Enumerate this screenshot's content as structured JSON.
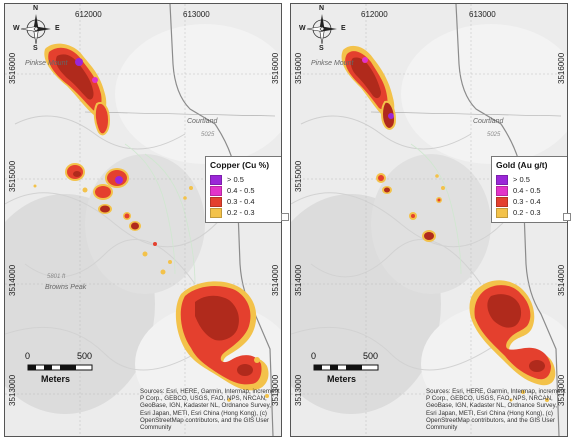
{
  "maps": [
    {
      "id": "left",
      "legend_title": "Copper (Cu %)",
      "legend_items": [
        {
          "label": "> 0.5",
          "color": "#9b27d8"
        },
        {
          "label": "0.4 - 0.5",
          "color": "#e333c9"
        },
        {
          "label": "0.3 - 0.4",
          "color": "#e4402e"
        },
        {
          "label": "0.2 - 0.3",
          "color": "#f3c24a"
        }
      ]
    },
    {
      "id": "right",
      "legend_title": "Gold (Au g/t)",
      "legend_items": [
        {
          "label": "> 0.5",
          "color": "#9b27d8"
        },
        {
          "label": "0.4 - 0.5",
          "color": "#e333c9"
        },
        {
          "label": "0.3 - 0.4",
          "color": "#e4402e"
        },
        {
          "label": "0.2 - 0.3",
          "color": "#f3c24a"
        }
      ]
    }
  ],
  "coords": {
    "easting_1": "612000",
    "easting_2": "613000",
    "northing_1": "3516000",
    "northing_2": "3515000",
    "northing_3": "3514000",
    "northing_4": "3513000"
  },
  "compass": {
    "n": "N",
    "s": "S",
    "e": "E",
    "w": "W"
  },
  "scale": {
    "zero": "0",
    "mark": "500",
    "units": "Meters"
  },
  "places": {
    "peak": "Browns Peak",
    "peak_elev": "5801 ft",
    "courtland": "Courtland",
    "elev_5025": "5025",
    "mountain_left": "Pinkse Mount",
    "mountain_right": "Pinkse Mount"
  },
  "attribution": "Sources: Esri, HERE, Garmin, Intermap, increment P Corp., GEBCO, USGS, FAO, NPS, NRCAN, GeoBase, IGN, Kadaster NL, Ordnance Survey, Esri Japan, METI, Esri China (Hong Kong), (c) OpenStreetMap contributors, and the GIS User Community",
  "colors": {
    "gt05": "#9b27d8",
    "c04_05": "#e333c9",
    "c03_04": "#e4402e",
    "c02_03": "#f3c24a",
    "dark_core": "#7a1a12"
  }
}
